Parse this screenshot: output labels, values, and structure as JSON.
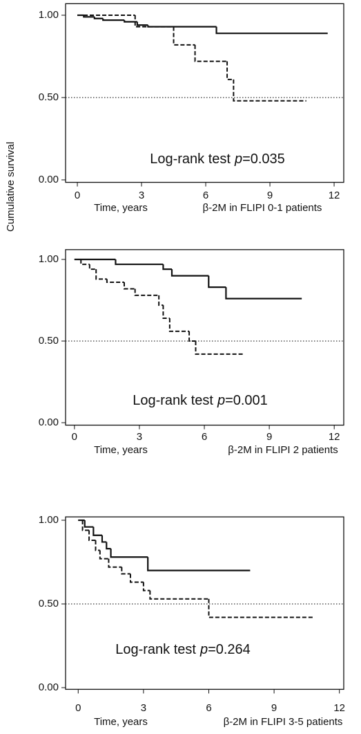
{
  "chart_data": [
    {
      "type": "step",
      "ylabel": "Cumulative survival",
      "xlabel": "Time, years",
      "subtitle": "β-2M in FLIPI 0-1 patients",
      "annotation": {
        "text": "Log-rank test",
        "p": "p",
        "value": "=0.035"
      },
      "xlim": [
        -0.55,
        12.45
      ],
      "ylim": [
        -0.015,
        1.07
      ],
      "xticks": [
        0,
        3,
        6,
        9,
        12
      ],
      "yticks": [
        {
          "value": 0,
          "label": "0.00"
        },
        {
          "value": 0.5,
          "label": "0.50"
        },
        {
          "value": 1,
          "label": "1.00"
        }
      ],
      "reference_line": 0.5,
      "series": [
        {
          "style": "solid",
          "color": "#111111",
          "x": [
            0,
            0.3,
            0.8,
            1.2,
            2.2,
            2.8,
            3.3,
            6.5,
            11.7
          ],
          "values": [
            1,
            0.99,
            0.98,
            0.97,
            0.96,
            0.94,
            0.93,
            0.89,
            0.89
          ]
        },
        {
          "style": "dashed",
          "color": "#111111",
          "x": [
            0,
            2.7,
            4.5,
            5.5,
            7.0,
            7.3,
            10.7
          ],
          "values": [
            1,
            0.93,
            0.82,
            0.72,
            0.61,
            0.48,
            0.48
          ]
        }
      ]
    },
    {
      "type": "step",
      "xlabel": "Time, years",
      "subtitle": "β-2M in FLIPI 2 patients",
      "annotation": {
        "text": "Log-rank test",
        "p": "p",
        "value": "=0.001"
      },
      "xlim": [
        -0.41,
        12.44
      ],
      "ylim": [
        -0.015,
        1.06
      ],
      "xticks": [
        0,
        3,
        6,
        9,
        12
      ],
      "yticks": [
        {
          "value": 0,
          "label": "0.00"
        },
        {
          "value": 0.5,
          "label": "0.50"
        },
        {
          "value": 1,
          "label": "1.00"
        }
      ],
      "reference_line": 0.5,
      "series": [
        {
          "style": "solid",
          "color": "#111111",
          "x": [
            0,
            1.9,
            4.1,
            4.5,
            6.2,
            7.0,
            10.5
          ],
          "values": [
            1,
            0.97,
            0.94,
            0.9,
            0.83,
            0.76,
            0.76
          ]
        },
        {
          "style": "dashed",
          "color": "#111111",
          "x": [
            0,
            0.3,
            0.7,
            1.0,
            1.5,
            2.3,
            2.8,
            3.9,
            4.1,
            4.4,
            5.3,
            5.6,
            7.8
          ],
          "values": [
            1,
            0.97,
            0.94,
            0.88,
            0.86,
            0.82,
            0.78,
            0.72,
            0.64,
            0.56,
            0.5,
            0.42,
            0.42
          ]
        }
      ]
    },
    {
      "type": "step",
      "xlabel": "Time, years",
      "subtitle": "β-2M in FLIPI 3-5 patients",
      "annotation": {
        "text": "Log-rank test",
        "p": "p",
        "value": "=0.264"
      },
      "xlim": [
        -0.58,
        12.2
      ],
      "ylim": [
        -0.01,
        1.02
      ],
      "xticks": [
        0,
        3,
        6,
        9,
        12
      ],
      "yticks": [
        {
          "value": 0,
          "label": "0.00"
        },
        {
          "value": 0.5,
          "label": "0.50"
        },
        {
          "value": 1,
          "label": "1.00"
        }
      ],
      "reference_line": 0.5,
      "series": [
        {
          "style": "solid",
          "color": "#111111",
          "x": [
            0,
            0.3,
            0.7,
            1.1,
            1.3,
            1.5,
            3.2,
            7.9
          ],
          "values": [
            1,
            0.96,
            0.91,
            0.87,
            0.83,
            0.78,
            0.7,
            0.7
          ]
        },
        {
          "style": "dashed",
          "color": "#111111",
          "x": [
            0,
            0.2,
            0.5,
            0.8,
            1.0,
            1.4,
            2.0,
            2.4,
            3.0,
            3.3,
            6.0,
            10.8
          ],
          "values": [
            1,
            0.94,
            0.88,
            0.82,
            0.77,
            0.72,
            0.68,
            0.63,
            0.58,
            0.53,
            0.42,
            0.42
          ]
        }
      ]
    }
  ]
}
